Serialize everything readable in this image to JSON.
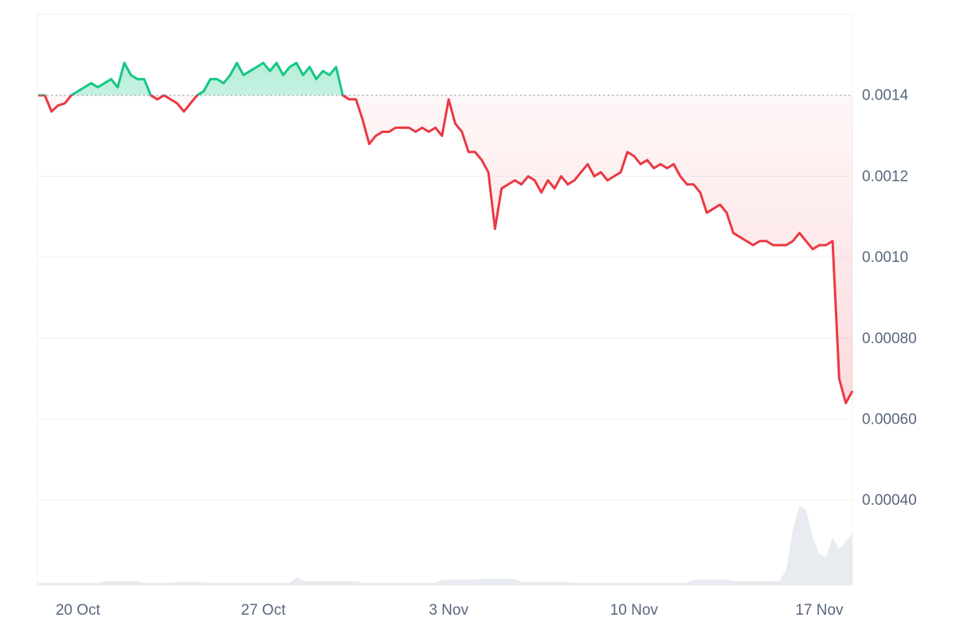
{
  "chart_data": {
    "type": "line",
    "categories": [
      null,
      null,
      null,
      null,
      null,
      null,
      "20 Oct",
      null,
      null,
      null,
      null,
      null,
      null,
      null,
      null,
      null,
      null,
      null,
      null,
      null,
      null,
      null,
      null,
      null,
      null,
      null,
      null,
      null,
      null,
      null,
      null,
      null,
      null,
      null,
      "27 Oct",
      null,
      null,
      null,
      null,
      null,
      null,
      null,
      null,
      null,
      null,
      null,
      null,
      null,
      null,
      null,
      null,
      null,
      null,
      null,
      null,
      null,
      null,
      null,
      null,
      null,
      null,
      null,
      "3 Nov",
      null,
      null,
      null,
      null,
      null,
      null,
      null,
      null,
      null,
      null,
      null,
      null,
      null,
      null,
      null,
      null,
      null,
      null,
      null,
      null,
      null,
      null,
      null,
      null,
      null,
      null,
      null,
      "10 Nov",
      null,
      null,
      null,
      null,
      null,
      null,
      null,
      null,
      null,
      null,
      null,
      null,
      null,
      null,
      null,
      null,
      null,
      null,
      null,
      null,
      null,
      null,
      null,
      null,
      null,
      null,
      null,
      "17 Nov",
      null,
      null,
      null,
      null,
      null
    ],
    "values": [
      0.0014,
      0.0014,
      0.00136,
      0.001375,
      0.00138,
      0.0014,
      0.00141,
      0.00142,
      0.00143,
      0.00142,
      0.00143,
      0.00144,
      0.00142,
      0.00148,
      0.00145,
      0.00144,
      0.00144,
      0.0014,
      0.00139,
      0.0014,
      0.00139,
      0.00138,
      0.00136,
      0.00138,
      0.0014,
      0.00141,
      0.00144,
      0.00144,
      0.00143,
      0.00145,
      0.00148,
      0.00145,
      0.00146,
      0.00147,
      0.00148,
      0.00146,
      0.00148,
      0.00145,
      0.00147,
      0.00148,
      0.00145,
      0.00147,
      0.00144,
      0.00146,
      0.00145,
      0.00147,
      0.0014,
      0.00139,
      0.00139,
      0.00134,
      0.00128,
      0.0013,
      0.00131,
      0.00131,
      0.00132,
      0.00132,
      0.00132,
      0.00131,
      0.00132,
      0.00131,
      0.00132,
      0.0013,
      0.00139,
      0.00133,
      0.00131,
      0.00126,
      0.00126,
      0.00124,
      0.00121,
      0.00107,
      0.00117,
      0.00118,
      0.00119,
      0.00118,
      0.0012,
      0.00119,
      0.00116,
      0.00119,
      0.00117,
      0.0012,
      0.00118,
      0.00119,
      0.00121,
      0.00123,
      0.0012,
      0.00121,
      0.00119,
      0.0012,
      0.00121,
      0.00126,
      0.00125,
      0.00123,
      0.00124,
      0.00122,
      0.00123,
      0.00122,
      0.00123,
      0.0012,
      0.00118,
      0.00118,
      0.00116,
      0.00111,
      0.00112,
      0.00113,
      0.00111,
      0.00106,
      0.00105,
      0.00104,
      0.00103,
      0.00104,
      0.00104,
      0.00103,
      0.00103,
      0.00103,
      0.00104,
      0.00106,
      0.00104,
      0.00102,
      0.00103,
      0.00103,
      0.00104,
      0.0007,
      0.00064,
      0.00067
    ],
    "volume": [
      3,
      3,
      3,
      3,
      3,
      3,
      3,
      3,
      3,
      3,
      5,
      5,
      5,
      5,
      5,
      5,
      3,
      3,
      3,
      3,
      3,
      4,
      4,
      4,
      4,
      4,
      3,
      3,
      3,
      3,
      3,
      3,
      3,
      3,
      3,
      3,
      3,
      3,
      3,
      10,
      6,
      5,
      5,
      5,
      5,
      5,
      5,
      5,
      5,
      3,
      3,
      3,
      3,
      3,
      3,
      3,
      3,
      3,
      3,
      3,
      3,
      7,
      7,
      7,
      7,
      7,
      7,
      8,
      8,
      8,
      8,
      8,
      8,
      4,
      4,
      4,
      4,
      4,
      4,
      4,
      4,
      3,
      3,
      3,
      3,
      3,
      3,
      3,
      3,
      3,
      3,
      3,
      3,
      3,
      3,
      3,
      3,
      3,
      3,
      7,
      7,
      7,
      7,
      7,
      7,
      5,
      5,
      5,
      5,
      5,
      5,
      5,
      5,
      20,
      70,
      100,
      95,
      60,
      40,
      35,
      60,
      45,
      55,
      65
    ],
    "baseline": 0.0014,
    "up_color": "#16c784",
    "down_color": "#ea3943",
    "volume_color": "#e8ebef",
    "ylim": [
      0.00019,
      0.0016
    ],
    "yticks": [
      {
        "value": 0.0004,
        "label": "0.00040"
      },
      {
        "value": 0.0006,
        "label": "0.00060"
      },
      {
        "value": 0.0008,
        "label": "0.00080"
      },
      {
        "value": 0.001,
        "label": "0.0010"
      },
      0.0012,
      0.0014
    ],
    "grid": true
  }
}
